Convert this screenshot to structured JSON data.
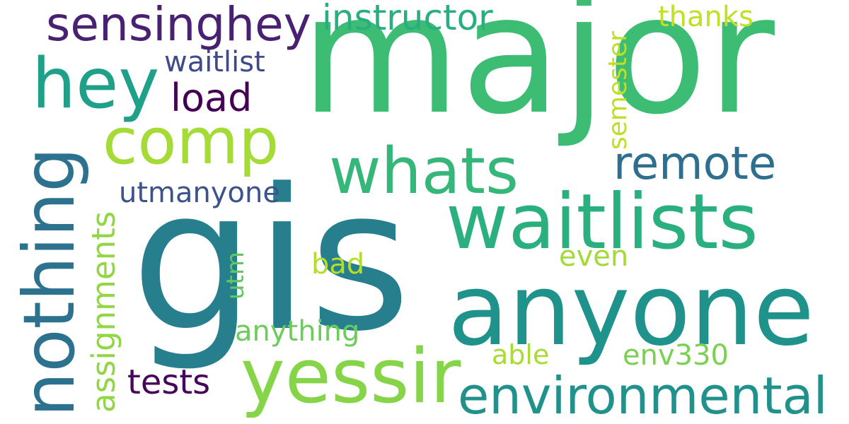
{
  "words": {
    "major": {
      "text": "major",
      "color": "#3dbc74"
    },
    "gis": {
      "text": "gis",
      "color": "#277f8e"
    },
    "anyone": {
      "text": "anyone",
      "color": "#20928c"
    },
    "waitlists": {
      "text": "waitlists",
      "color": "#2ab07f"
    },
    "nothing": {
      "text": "nothing",
      "color": "#2c728e"
    },
    "yessir": {
      "text": "yessir",
      "color": "#86d549"
    },
    "environmental": {
      "text": "environmental",
      "color": "#21918c"
    },
    "whats": {
      "text": "whats",
      "color": "#35b779"
    },
    "comp": {
      "text": "comp",
      "color": "#a5db36"
    },
    "hey": {
      "text": "hey",
      "color": "#1fa088"
    },
    "sensinghey": {
      "text": "sensinghey",
      "color": "#482173"
    },
    "remote": {
      "text": "remote",
      "color": "#2e6e8e"
    },
    "instructor": {
      "text": "instructor",
      "color": "#29af7f"
    },
    "thanks": {
      "text": "thanks",
      "color": "#c2df23"
    },
    "semester": {
      "text": "semester",
      "color": "#bddf26"
    },
    "waitlist": {
      "text": "waitlist",
      "color": "#3e4a89"
    },
    "load": {
      "text": "load",
      "color": "#440154"
    },
    "utmanyone": {
      "text": "utmanyone",
      "color": "#3b528b"
    },
    "assignments": {
      "text": "assignments",
      "color": "#90d743"
    },
    "utm": {
      "text": "utm",
      "color": "#5ec962"
    },
    "bad": {
      "text": "bad",
      "color": "#b5de2b"
    },
    "even": {
      "text": "even",
      "color": "#a2da37"
    },
    "anything": {
      "text": "anything",
      "color": "#6ccd5a"
    },
    "tests": {
      "text": "tests",
      "color": "#46075a"
    },
    "able": {
      "text": "able",
      "color": "#a8db34"
    },
    "env330": {
      "text": "env330",
      "color": "#7ad151"
    }
  }
}
